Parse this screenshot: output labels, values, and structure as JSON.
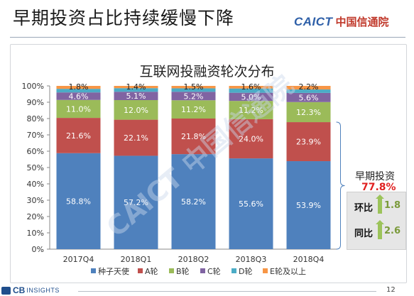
{
  "header": {
    "title": "早期投资占比持续缓慢下降",
    "logo_main": "CAICT",
    "logo_sub": "中国信通院"
  },
  "chart_data": {
    "type": "bar",
    "stacked": true,
    "title": "互联网投融资轮次分布",
    "categories": [
      "2017Q4",
      "2018Q1",
      "2018Q2",
      "2018Q3",
      "2018Q4"
    ],
    "y_ticks": [
      "0%",
      "10%",
      "20%",
      "30%",
      "40%",
      "50%",
      "60%",
      "70%",
      "80%",
      "90%",
      "100%"
    ],
    "ylim": [
      0,
      100
    ],
    "series": [
      {
        "name": "种子天使",
        "color": "#4f81bd",
        "values": [
          58.8,
          57.2,
          58.2,
          55.6,
          53.9
        ],
        "labels": [
          "58.8%",
          "57.2%",
          "58.2%",
          "55.6%",
          "53.9%"
        ]
      },
      {
        "name": "A轮",
        "color": "#c0504d",
        "values": [
          21.6,
          22.1,
          21.8,
          24.0,
          23.9
        ],
        "labels": [
          "21.6%",
          "22.1%",
          "21.8%",
          "24.0%",
          "23.9%"
        ]
      },
      {
        "name": "B轮",
        "color": "#9bbb59",
        "values": [
          11.0,
          12.0,
          11.2,
          11.2,
          12.3
        ],
        "labels": [
          "11.0%",
          "12.0%",
          "11.2%",
          "11.2%",
          "12.3%"
        ]
      },
      {
        "name": "C轮",
        "color": "#8064a2",
        "values": [
          4.6,
          5.1,
          5.2,
          5.0,
          5.6
        ],
        "labels": [
          "4.6%",
          "5.1%",
          "5.2%",
          "5.0%",
          "5.6%"
        ]
      },
      {
        "name": "D轮",
        "color": "#4bacc6",
        "values": [
          2.2,
          2.2,
          2.1,
          2.6,
          2.1
        ],
        "labels": [
          "",
          "",
          "",
          "",
          ""
        ]
      },
      {
        "name": "E轮及以上",
        "color": "#f79646",
        "values": [
          1.8,
          1.4,
          1.5,
          1.6,
          2.2
        ],
        "labels": [
          "1.8%",
          "1.4%",
          "1.5%",
          "1.6%",
          "2.2%"
        ]
      }
    ],
    "legend_position": "bottom",
    "grid": false
  },
  "side_panel": {
    "label": "早期投资",
    "value": "77.8%",
    "rows": [
      {
        "label": "环比",
        "value": "1.8"
      },
      {
        "label": "同比",
        "value": "2.6"
      }
    ]
  },
  "footer": {
    "logo_main": "CB",
    "logo_sub": "INSIGHTS",
    "page": "12"
  },
  "watermark": "CAICT 中国信通院"
}
